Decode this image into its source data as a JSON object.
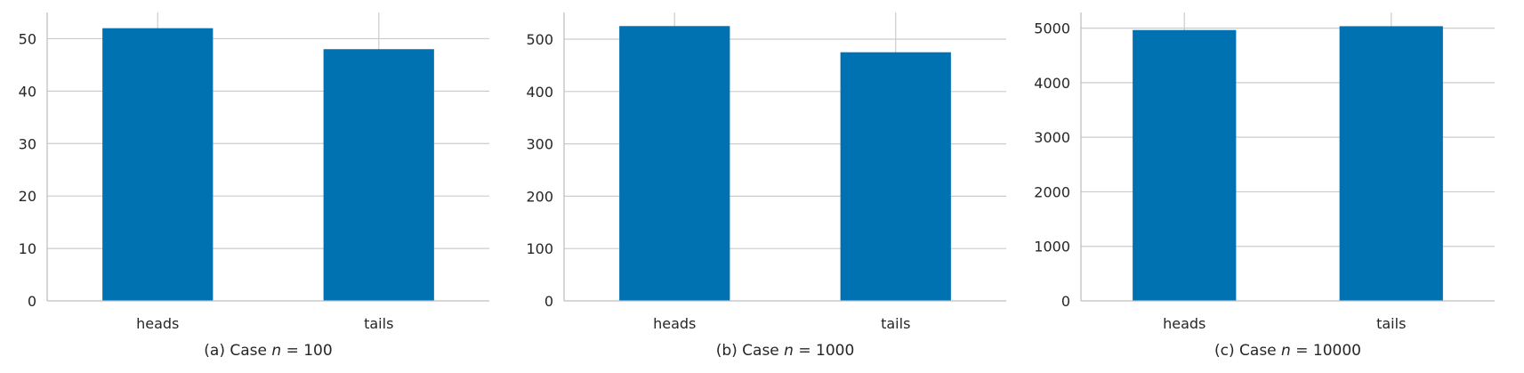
{
  "chart_data": [
    {
      "type": "bar",
      "categories": [
        "heads",
        "tails"
      ],
      "values": [
        52,
        48
      ],
      "caption_prefix": "(a) Case ",
      "caption_var": "n",
      "caption_eq": " = ",
      "caption_value": "100",
      "ylim": [
        0,
        55
      ],
      "yticks": [
        0,
        10,
        20,
        30,
        40,
        50
      ],
      "bar_color": "#0072b2",
      "grid": true
    },
    {
      "type": "bar",
      "categories": [
        "heads",
        "tails"
      ],
      "values": [
        525,
        475
      ],
      "caption_prefix": "(b) Case ",
      "caption_var": "n",
      "caption_eq": " = ",
      "caption_value": "1000",
      "ylim": [
        0,
        551
      ],
      "yticks": [
        0,
        100,
        200,
        300,
        400,
        500
      ],
      "bar_color": "#0072b2",
      "grid": true
    },
    {
      "type": "bar",
      "categories": [
        "heads",
        "tails"
      ],
      "values": [
        4965,
        5035
      ],
      "caption_prefix": "(c) Case ",
      "caption_var": "n",
      "caption_eq": " = ",
      "caption_value": "10000",
      "ylim": [
        0,
        5287
      ],
      "yticks": [
        0,
        1000,
        2000,
        3000,
        4000,
        5000
      ],
      "bar_color": "#0072b2",
      "grid": true
    }
  ],
  "colors": {
    "grid": "#cccccc",
    "spine": "#bfbfbf",
    "bar": "#0072b2",
    "text": "#262626"
  }
}
